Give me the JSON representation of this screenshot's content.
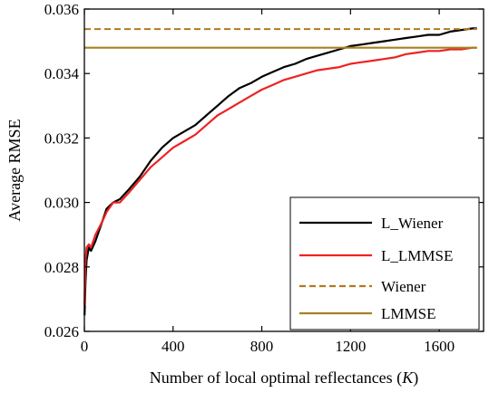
{
  "chart_data": {
    "type": "line",
    "xlabel_prefix": "Number of local optimal reflectances (",
    "xlabel_var": "K",
    "xlabel_suffix": ")",
    "ylabel": "Average RMSE",
    "xlim": [
      0,
      1800
    ],
    "ylim": [
      0.026,
      0.036
    ],
    "x_ticks": [
      0,
      400,
      800,
      1200,
      1600
    ],
    "x_tick_labels": [
      "0",
      "400",
      "800",
      "1200",
      "1600"
    ],
    "y_ticks": [
      0.026,
      0.028,
      0.03,
      0.032,
      0.034,
      0.036
    ],
    "y_tick_labels": [
      "0.026",
      "0.028",
      "0.030",
      "0.032",
      "0.034",
      "0.036"
    ],
    "grid": false,
    "legend_position": "bottom-right",
    "series": [
      {
        "name": "L_Wiener",
        "color": "#000000",
        "style": "solid",
        "x": [
          1,
          5,
          10,
          20,
          30,
          50,
          80,
          100,
          130,
          160,
          200,
          250,
          300,
          350,
          400,
          450,
          500,
          550,
          600,
          650,
          700,
          750,
          800,
          850,
          900,
          950,
          1000,
          1050,
          1100,
          1150,
          1200,
          1250,
          1300,
          1350,
          1400,
          1450,
          1500,
          1550,
          1600,
          1650,
          1700,
          1750,
          1770
        ],
        "y": [
          0.0265,
          0.0275,
          0.0282,
          0.0286,
          0.0285,
          0.0288,
          0.0294,
          0.0298,
          0.03,
          0.0301,
          0.0304,
          0.0308,
          0.0313,
          0.0317,
          0.032,
          0.0322,
          0.0324,
          0.0327,
          0.033,
          0.0333,
          0.03355,
          0.0337,
          0.0339,
          0.03405,
          0.0342,
          0.0343,
          0.03445,
          0.03455,
          0.03465,
          0.03475,
          0.03485,
          0.0349,
          0.03495,
          0.035,
          0.03505,
          0.0351,
          0.03515,
          0.0352,
          0.0352,
          0.0353,
          0.03535,
          0.0354,
          0.0354
        ]
      },
      {
        "name": "L_LMMSE",
        "color": "#ee2222",
        "style": "solid",
        "x": [
          1,
          5,
          10,
          20,
          30,
          50,
          80,
          100,
          130,
          160,
          200,
          250,
          300,
          350,
          400,
          450,
          500,
          550,
          600,
          650,
          700,
          750,
          800,
          850,
          900,
          950,
          1000,
          1050,
          1100,
          1150,
          1200,
          1250,
          1300,
          1350,
          1400,
          1450,
          1500,
          1550,
          1600,
          1650,
          1700,
          1750,
          1770
        ],
        "y": [
          0.0268,
          0.0282,
          0.0286,
          0.0287,
          0.0286,
          0.029,
          0.0294,
          0.0297,
          0.03,
          0.03,
          0.0303,
          0.0307,
          0.0311,
          0.0314,
          0.0317,
          0.0319,
          0.0321,
          0.0324,
          0.0327,
          0.0329,
          0.0331,
          0.0333,
          0.0335,
          0.03365,
          0.0338,
          0.0339,
          0.034,
          0.0341,
          0.03415,
          0.0342,
          0.0343,
          0.03435,
          0.0344,
          0.03445,
          0.0345,
          0.0346,
          0.03465,
          0.0347,
          0.0347,
          0.03475,
          0.03475,
          0.0348,
          0.0348
        ]
      },
      {
        "name": "Wiener",
        "color": "#b07a1e",
        "style": "dashed",
        "x": [
          0,
          1770
        ],
        "y": [
          0.03538,
          0.03538
        ]
      },
      {
        "name": "LMMSE",
        "color": "#a8801e",
        "style": "solid",
        "x": [
          0,
          1770
        ],
        "y": [
          0.0348,
          0.0348
        ]
      }
    ]
  }
}
